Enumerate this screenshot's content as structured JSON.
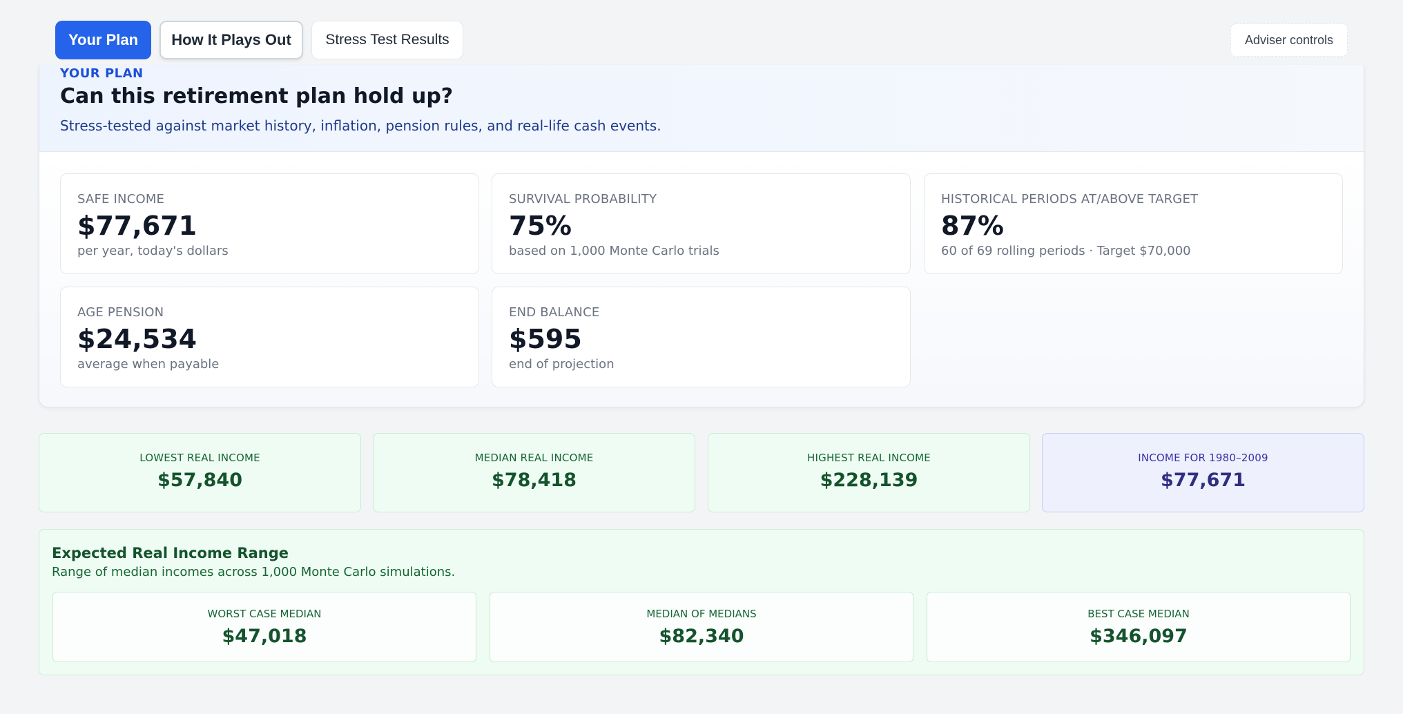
{
  "tabs": {
    "your_plan": "Your Plan",
    "how_it_plays_out": "How It Plays Out",
    "stress_test_results": "Stress Test Results"
  },
  "adviser_controls": "Adviser controls",
  "plan": {
    "eyebrow": "YOUR PLAN",
    "title": "Can this retirement plan hold up?",
    "subtitle": "Stress-tested against market history, inflation, pension rules, and real-life cash events.",
    "kpis": [
      {
        "label": "Safe income",
        "value": "$77,671",
        "note": "per year, today's dollars"
      },
      {
        "label": "Survival probability",
        "value": "75%",
        "note": "based on 1,000 Monte Carlo trials"
      },
      {
        "label": "Historical periods at/above target",
        "value": "87%",
        "note": "60 of 69 rolling periods · Target $70,000"
      },
      {
        "label": "Age pension",
        "value": "$24,534",
        "note": "average when payable"
      },
      {
        "label": "End balance",
        "value": "$595",
        "note": "end of projection"
      }
    ]
  },
  "stats": [
    {
      "label": "Lowest real income",
      "value": "$57,840"
    },
    {
      "label": "Median real income",
      "value": "$78,418"
    },
    {
      "label": "Highest real income",
      "value": "$228,139"
    },
    {
      "label": "Income for 1980–2009",
      "value": "$77,671"
    }
  ],
  "range": {
    "title": "Expected Real Income Range",
    "subtitle": "Range of median incomes across 1,000 Monte Carlo simulations.",
    "cards": [
      {
        "label": "Worst case median",
        "value": "$47,018"
      },
      {
        "label": "Median of medians",
        "value": "$82,340"
      },
      {
        "label": "Best case median",
        "value": "$346,097"
      }
    ]
  },
  "colors": {
    "accent": "#2563eb",
    "positive_bg": "#effcf3",
    "highlight_bg": "#eef0fe"
  }
}
